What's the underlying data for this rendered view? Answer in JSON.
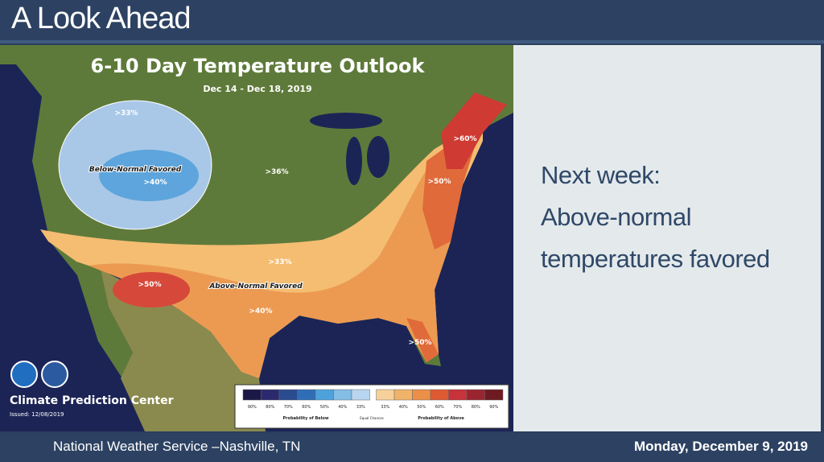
{
  "header": {
    "title": "A Look Ahead"
  },
  "map": {
    "title": "6-10 Day Temperature Outlook",
    "subtitle": "Dec 14 - Dec 18, 2019",
    "labels": [
      ">33%",
      "Below-Normal Favored",
      ">40%",
      ">36%",
      ">60%",
      ">50%",
      ">33%",
      ">50%",
      "Above-Normal Favored",
      ">40%",
      ">50%"
    ],
    "center": "Climate Prediction Center",
    "issued": "Issued: 12/08/2019",
    "legend": {
      "ticks": [
        "90%",
        "80%",
        "70%",
        "60%",
        "50%",
        "40%",
        "33%",
        "33%",
        "40%",
        "50%",
        "60%",
        "70%",
        "80%",
        "90%"
      ],
      "below": "Probability of Below",
      "equal": "Equal Chances",
      "above": "Probability of Above"
    }
  },
  "panel": {
    "lines": [
      "Next week:",
      "Above-normal",
      "temperatures favored"
    ]
  },
  "footer": {
    "source": "National Weather Service –Nashville, TN",
    "date": "Monday, December 9, 2019"
  }
}
